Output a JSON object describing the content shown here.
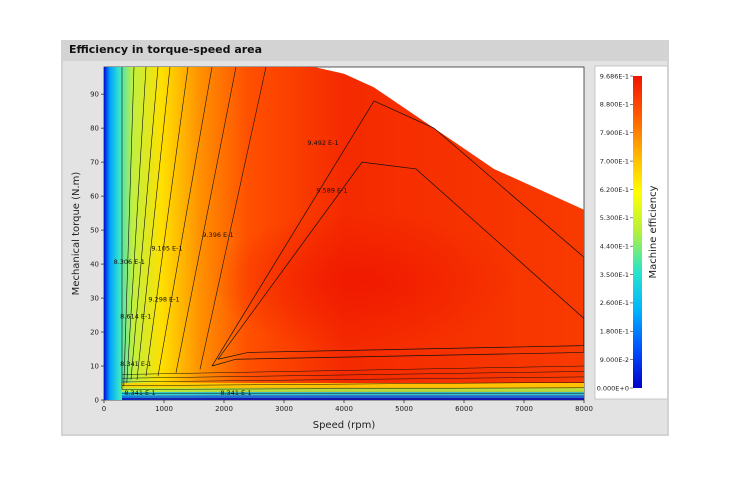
{
  "panel": {
    "title": "Efficiency in torque-speed area"
  },
  "chart_data": {
    "type": "heatmap",
    "title": "Efficiency in torque-speed area",
    "xlabel": "Speed (rpm)",
    "ylabel": "Mechanical torque (N.m)",
    "xlim": [
      0,
      8000
    ],
    "ylim": [
      0,
      98
    ],
    "x_ticks": [
      0,
      1000,
      2000,
      3000,
      4000,
      5000,
      6000,
      7000,
      8000
    ],
    "y_ticks": [
      0,
      10,
      20,
      30,
      40,
      50,
      60,
      70,
      80,
      90
    ],
    "operating_envelope": {
      "speed": [
        0,
        3500,
        4000,
        4500,
        5000,
        5500,
        6000,
        6500,
        7000,
        7500,
        8000
      ],
      "max_torque": [
        98,
        98,
        96,
        92,
        86,
        80,
        74,
        68,
        64,
        60,
        56
      ]
    },
    "contours": [
      {
        "label": "9.589 E-1",
        "value": 0.9589,
        "speed": 3800,
        "torque": 61
      },
      {
        "label": "9.492 E-1",
        "value": 0.9492,
        "speed": 3650,
        "torque": 75
      },
      {
        "label": "9.396 E-1",
        "value": 0.9396,
        "speed": 1900,
        "torque": 48
      },
      {
        "label": "9.105 E-1",
        "value": 0.9105,
        "speed": 1050,
        "torque": 44
      },
      {
        "label": "9.298 E-1",
        "value": 0.9298,
        "speed": 1000,
        "torque": 29
      },
      {
        "label": "8.306 E-1",
        "value": 0.8306,
        "speed": 420,
        "torque": 40
      },
      {
        "label": "8.614 E-1",
        "value": 0.8614,
        "speed": 530,
        "torque": 24
      },
      {
        "label": "8.341 E-1",
        "value": 0.8341,
        "speed": 530,
        "torque": 10
      },
      {
        "label": "8.341 E-1",
        "value": 0.8341,
        "speed": 600,
        "torque": 1.5
      },
      {
        "label": "8.341 E-1",
        "value": 0.8341,
        "speed": 2200,
        "torque": 1.5
      }
    ],
    "colorbar": {
      "label": "Machine efficiency",
      "min": 0,
      "max": 0.9686,
      "ticks": [
        "9.686E-1",
        "8.800E-1",
        "7.900E-1",
        "7.000E-1",
        "6.200E-1",
        "5.300E-1",
        "4.400E-1",
        "3.500E-1",
        "2.600E-1",
        "1.800E-1",
        "9.000E-2",
        "0.000E+0"
      ],
      "colors": [
        "#0000c8",
        "#0050ff",
        "#00b4ff",
        "#28e6c8",
        "#b4f03c",
        "#ffff00",
        "#ffb400",
        "#ff5a00",
        "#f01400"
      ]
    },
    "grid": false,
    "legend": "colorbar-right"
  }
}
